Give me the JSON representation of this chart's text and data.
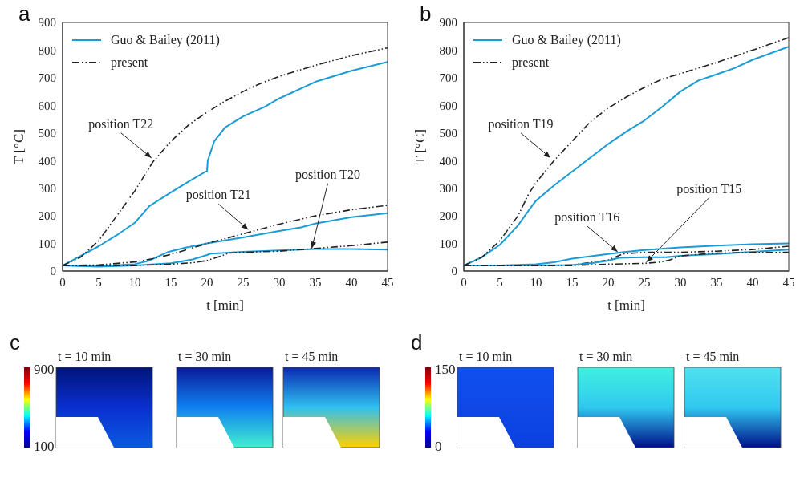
{
  "chart_data": [
    {
      "type": "line",
      "title": "a",
      "xlabel": "t [min]",
      "ylabel": "T [°C]",
      "xlim": [
        0,
        45
      ],
      "ylim": [
        0,
        900
      ],
      "xticks": [
        0,
        5,
        10,
        15,
        20,
        25,
        30,
        35,
        40,
        45
      ],
      "yticks": [
        0,
        100,
        200,
        300,
        400,
        500,
        600,
        700,
        800,
        900
      ],
      "legend": "top left",
      "grid": false,
      "marker": "none",
      "annotations": [
        {
          "text": "position T22",
          "x": 12.3,
          "y": 410
        },
        {
          "text": "position T21",
          "x": 25.7,
          "y": 150
        },
        {
          "text": "position T20",
          "x": 34.5,
          "y": 82
        }
      ],
      "series": [
        {
          "name": "Guo & Bailey (2011)",
          "color": "#1a9bd7",
          "line_style": "solid",
          "x": [
            0,
            2.5,
            5,
            7.5,
            10,
            10.5,
            12,
            15,
            17.5,
            19.8,
            20,
            20.1,
            21,
            22.5,
            25,
            28,
            30,
            35,
            40,
            45
          ],
          "values": [
            20,
            55,
            90,
            130,
            175,
            190,
            235,
            285,
            325,
            360,
            360,
            400,
            470,
            520,
            560,
            595,
            625,
            685,
            725,
            757
          ]
        },
        {
          "name": "present",
          "color": "#222222",
          "line_style": "dashed",
          "x": [
            0,
            2.5,
            5,
            7.5,
            10,
            12.5,
            15,
            17.5,
            20,
            22.5,
            25,
            27.5,
            30,
            35,
            40,
            45
          ],
          "values": [
            20,
            50,
            110,
            200,
            290,
            395,
            470,
            530,
            575,
            615,
            650,
            680,
            705,
            745,
            780,
            808
          ]
        },
        {
          "color": "#1a9bd7",
          "line_style": "solid",
          "x": [
            0,
            5,
            10,
            12,
            14.5,
            17,
            20,
            25,
            30,
            33,
            35,
            40,
            45
          ],
          "values": [
            20,
            18,
            25,
            38,
            68,
            85,
            100,
            122,
            145,
            158,
            172,
            195,
            210
          ]
        },
        {
          "color": "#222222",
          "line_style": "dashed",
          "x": [
            0,
            5,
            10,
            12.5,
            15,
            17.5,
            20,
            25,
            30,
            35,
            40,
            45
          ],
          "values": [
            20,
            22,
            33,
            45,
            60,
            80,
            100,
            135,
            170,
            200,
            222,
            238
          ]
        },
        {
          "color": "#1a9bd7",
          "line_style": "solid",
          "x": [
            0,
            5,
            10,
            15,
            18,
            20,
            20.5,
            25,
            30,
            35,
            40,
            45
          ],
          "values": [
            20,
            16,
            20,
            28,
            42,
            58,
            63,
            70,
            75,
            80,
            80,
            78
          ]
        },
        {
          "color": "#222222",
          "line_style": "dashed",
          "x": [
            0,
            5,
            10,
            15,
            18,
            20,
            22,
            23,
            25,
            30,
            35,
            40,
            45
          ],
          "values": [
            20,
            20,
            20,
            25,
            30,
            38,
            55,
            65,
            68,
            72,
            82,
            92,
            105
          ]
        }
      ]
    },
    {
      "type": "line",
      "title": "b",
      "xlabel": "t [min]",
      "ylabel": "T [°C]",
      "xlim": [
        0,
        45
      ],
      "ylim": [
        0,
        900
      ],
      "xticks": [
        0,
        5,
        10,
        15,
        20,
        25,
        30,
        35,
        40,
        45
      ],
      "yticks": [
        0,
        100,
        200,
        300,
        400,
        500,
        600,
        700,
        800,
        900
      ],
      "legend": "top left",
      "grid": false,
      "marker": "none",
      "annotations": [
        {
          "text": "position T19",
          "x": 12,
          "y": 410
        },
        {
          "text": "position T16",
          "x": 21.3,
          "y": 70
        },
        {
          "text": "position T15",
          "x": 25.3,
          "y": 33
        }
      ],
      "series": [
        {
          "name": "Guo & Bailey (2011)",
          "color": "#1a9bd7",
          "line_style": "solid",
          "x": [
            0,
            2.5,
            5,
            7.5,
            9,
            10,
            12.5,
            15,
            17.5,
            20,
            22.5,
            25,
            27.5,
            30,
            32.5,
            35,
            37.5,
            40,
            45
          ],
          "values": [
            20,
            50,
            95,
            165,
            220,
            255,
            310,
            360,
            410,
            460,
            505,
            545,
            595,
            650,
            690,
            712,
            735,
            765,
            812
          ]
        },
        {
          "name": "present",
          "color": "#222222",
          "line_style": "dashed",
          "x": [
            0,
            2.5,
            5,
            7.5,
            9,
            10,
            12.5,
            15,
            17.5,
            20,
            22.5,
            25,
            27.5,
            30,
            35,
            40,
            45
          ],
          "values": [
            20,
            50,
            110,
            200,
            280,
            320,
            400,
            470,
            540,
            590,
            630,
            665,
            695,
            715,
            755,
            800,
            845
          ]
        },
        {
          "color": "#1a9bd7",
          "line_style": "solid",
          "x": [
            0,
            5,
            10,
            12.5,
            15,
            20,
            22.5,
            25,
            30,
            35,
            40,
            45
          ],
          "values": [
            20,
            20,
            25,
            32,
            45,
            62,
            70,
            76,
            86,
            92,
            97,
            100
          ]
        },
        {
          "color": "#222222",
          "line_style": "dashed",
          "x": [
            0,
            10,
            15,
            20,
            22,
            25,
            30,
            35,
            40,
            45
          ],
          "values": [
            20,
            20,
            22,
            40,
            62,
            68,
            68,
            72,
            78,
            90
          ]
        },
        {
          "color": "#1a9bd7",
          "line_style": "solid",
          "x": [
            0,
            10,
            15,
            18,
            20,
            21.5,
            25,
            28,
            30,
            35,
            40,
            45
          ],
          "values": [
            20,
            20,
            22,
            30,
            38,
            48,
            50,
            50,
            55,
            62,
            70,
            78
          ]
        },
        {
          "color": "#222222",
          "line_style": "dashed",
          "x": [
            0,
            10,
            15,
            20,
            25,
            27,
            28.5,
            30,
            35,
            40,
            45
          ],
          "values": [
            20,
            20,
            20,
            25,
            28,
            32,
            40,
            55,
            65,
            67,
            68
          ]
        }
      ]
    },
    {
      "type": "other",
      "title": "c",
      "annotations": [
        "t = 10 min",
        "t = 30 min",
        "t = 45 min",
        "900",
        "100"
      ]
    },
    {
      "type": "other",
      "title": "d",
      "annotations": [
        "t = 10 min",
        "t = 30 min",
        "t = 45 min",
        "150",
        "0"
      ]
    }
  ]
}
